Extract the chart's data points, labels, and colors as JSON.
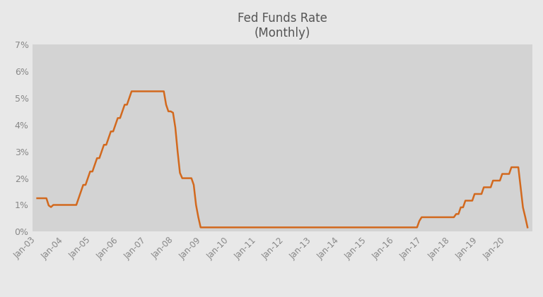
{
  "title_line1": "Fed Funds Rate",
  "title_line2": "(Monthly)",
  "line_color": "#D2691E",
  "background_color": "#E8E8E8",
  "plot_bg_color": "#D3D3D3",
  "title_color": "#555555",
  "tick_label_color": "#888888",
  "ylim": [
    0,
    0.07
  ],
  "yticks": [
    0.0,
    0.01,
    0.02,
    0.03,
    0.04,
    0.05,
    0.06,
    0.07
  ],
  "ytick_labels": [
    "0%",
    "1%",
    "2%",
    "3%",
    "4%",
    "5%",
    "6%",
    "7%"
  ],
  "line_width": 1.8,
  "values": [
    0.0125,
    0.0125,
    0.0125,
    0.0125,
    0.0125,
    0.0098,
    0.0092,
    0.01,
    0.01,
    0.01,
    0.01,
    0.01,
    0.01,
    0.01,
    0.01,
    0.01,
    0.01,
    0.01,
    0.0125,
    0.015,
    0.0175,
    0.0175,
    0.02,
    0.0225,
    0.0225,
    0.025,
    0.0275,
    0.0275,
    0.03,
    0.0325,
    0.0325,
    0.035,
    0.0375,
    0.0375,
    0.04,
    0.0425,
    0.0425,
    0.045,
    0.0475,
    0.0475,
    0.05,
    0.0525,
    0.0525,
    0.0525,
    0.0525,
    0.0525,
    0.0525,
    0.0525,
    0.0525,
    0.0525,
    0.0525,
    0.0525,
    0.0525,
    0.0525,
    0.0525,
    0.0525,
    0.0475,
    0.045,
    0.045,
    0.0445,
    0.039,
    0.03,
    0.022,
    0.02,
    0.02,
    0.02,
    0.02,
    0.02,
    0.0175,
    0.01,
    0.0054,
    0.0016,
    0.0016,
    0.0016,
    0.0016,
    0.0016,
    0.0016,
    0.0016,
    0.0016,
    0.0016,
    0.0016,
    0.0016,
    0.0016,
    0.0016,
    0.0016,
    0.0016,
    0.0016,
    0.0016,
    0.0016,
    0.0016,
    0.0016,
    0.0016,
    0.0016,
    0.0016,
    0.0016,
    0.0016,
    0.0016,
    0.0016,
    0.0016,
    0.0016,
    0.0016,
    0.0016,
    0.0016,
    0.0016,
    0.0016,
    0.0016,
    0.0016,
    0.0016,
    0.0016,
    0.0016,
    0.0016,
    0.0016,
    0.0016,
    0.0016,
    0.0016,
    0.0016,
    0.0016,
    0.0016,
    0.0016,
    0.0016,
    0.0016,
    0.0016,
    0.0016,
    0.0016,
    0.0016,
    0.0016,
    0.0016,
    0.0016,
    0.0016,
    0.0016,
    0.0016,
    0.0016,
    0.0016,
    0.0016,
    0.0016,
    0.0016,
    0.0016,
    0.0016,
    0.0016,
    0.0016,
    0.0016,
    0.0016,
    0.0016,
    0.0016,
    0.0016,
    0.0016,
    0.0016,
    0.0016,
    0.0016,
    0.0016,
    0.0016,
    0.0016,
    0.0016,
    0.0016,
    0.0016,
    0.0016,
    0.0016,
    0.0016,
    0.0016,
    0.0016,
    0.0016,
    0.0016,
    0.0016,
    0.0016,
    0.0016,
    0.0016,
    0.004,
    0.0054,
    0.0054,
    0.0054,
    0.0054,
    0.0054,
    0.0054,
    0.0054,
    0.0054,
    0.0054,
    0.0054,
    0.0054,
    0.0054,
    0.0054,
    0.0054,
    0.0054,
    0.0066,
    0.0066,
    0.0091,
    0.0091,
    0.0116,
    0.0116,
    0.0116,
    0.0116,
    0.0141,
    0.0141,
    0.0141,
    0.0141,
    0.0166,
    0.0166,
    0.0166,
    0.0166,
    0.0191,
    0.0191,
    0.0191,
    0.0191,
    0.0216,
    0.0216,
    0.0216,
    0.0216,
    0.0241,
    0.0241,
    0.0241,
    0.0241,
    0.0166,
    0.0091,
    0.0055,
    0.0016
  ]
}
